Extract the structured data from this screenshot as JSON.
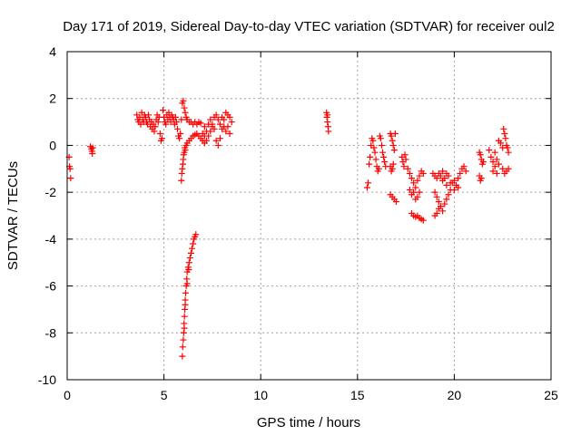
{
  "chart_data": {
    "type": "scatter",
    "title": "Day 171 of 2019, Sidereal Day-to-day VTEC variation (SDTVAR) for receiver oul2",
    "xlabel": "GPS time / hours",
    "ylabel": "SDTVAR / TECUs",
    "xlim": [
      0,
      25
    ],
    "ylim": [
      -10,
      4
    ],
    "xticks": [
      0,
      5,
      10,
      15,
      20,
      25
    ],
    "yticks": [
      -10,
      -8,
      -6,
      -4,
      -2,
      0,
      2,
      4
    ],
    "grid": true,
    "marker": "+",
    "series": [
      {
        "name": "SDTVAR",
        "color": "#ff0000",
        "points": [
          [
            0.1,
            -0.5
          ],
          [
            0.12,
            -0.9
          ],
          [
            0.15,
            -1.0
          ],
          [
            0.18,
            -1.4
          ],
          [
            1.2,
            -0.05
          ],
          [
            1.25,
            -0.15
          ],
          [
            1.28,
            -0.25
          ],
          [
            1.3,
            -0.35
          ],
          [
            1.32,
            -0.1
          ],
          [
            3.6,
            1.3
          ],
          [
            3.65,
            1.1
          ],
          [
            3.7,
            1.0
          ],
          [
            3.75,
            1.2
          ],
          [
            3.8,
            0.9
          ],
          [
            3.85,
            1.4
          ],
          [
            3.9,
            1.1
          ],
          [
            3.95,
            1.0
          ],
          [
            4.0,
            1.3
          ],
          [
            4.05,
            1.2
          ],
          [
            4.1,
            1.0
          ],
          [
            4.15,
            0.9
          ],
          [
            4.2,
            1.3
          ],
          [
            4.25,
            1.1
          ],
          [
            4.3,
            0.8
          ],
          [
            4.35,
            1.0
          ],
          [
            4.4,
            0.7
          ],
          [
            4.45,
            0.9
          ],
          [
            4.5,
            0.6
          ],
          [
            4.55,
            0.8
          ],
          [
            4.6,
            1.1
          ],
          [
            4.65,
            1.3
          ],
          [
            4.7,
            1.0
          ],
          [
            4.75,
            1.2
          ],
          [
            4.8,
            0.5
          ],
          [
            4.85,
            0.2
          ],
          [
            4.9,
            0.3
          ],
          [
            4.95,
            1.5
          ],
          [
            5.0,
            1.2
          ],
          [
            5.05,
            1.0
          ],
          [
            5.1,
            0.9
          ],
          [
            5.15,
            1.3
          ],
          [
            5.2,
            1.1
          ],
          [
            5.25,
            1.4
          ],
          [
            5.3,
            1.2
          ],
          [
            5.35,
            1.0
          ],
          [
            5.4,
            1.3
          ],
          [
            5.45,
            1.2
          ],
          [
            5.5,
            1.1
          ],
          [
            5.55,
            0.9
          ],
          [
            5.6,
            1.2
          ],
          [
            5.65,
            1.0
          ],
          [
            5.7,
            0.7
          ],
          [
            5.75,
            0.4
          ],
          [
            5.8,
            0.3
          ],
          [
            5.85,
            0.5
          ],
          [
            5.9,
            1.1
          ],
          [
            5.95,
            1.8
          ],
          [
            6.0,
            1.9
          ],
          [
            6.05,
            1.6
          ],
          [
            6.1,
            1.4
          ],
          [
            6.15,
            1.2
          ],
          [
            6.2,
            1.1
          ],
          [
            6.3,
            1.0
          ],
          [
            6.4,
            1.0
          ],
          [
            6.5,
            0.9
          ],
          [
            6.6,
            1.0
          ],
          [
            6.7,
            0.9
          ],
          [
            6.8,
            1.0
          ],
          [
            6.9,
            0.95
          ],
          [
            5.9,
            -1.5
          ],
          [
            5.92,
            -1.2
          ],
          [
            5.95,
            -1.0
          ],
          [
            5.98,
            -0.8
          ],
          [
            6.0,
            -0.6
          ],
          [
            6.02,
            -0.4
          ],
          [
            6.05,
            -0.3
          ],
          [
            6.08,
            -0.1
          ],
          [
            6.1,
            -0.2
          ],
          [
            6.15,
            0.0
          ],
          [
            6.2,
            0.1
          ],
          [
            6.3,
            0.2
          ],
          [
            6.4,
            0.3
          ],
          [
            6.5,
            0.4
          ],
          [
            6.6,
            0.45
          ],
          [
            6.7,
            0.5
          ],
          [
            6.8,
            0.4
          ],
          [
            6.9,
            0.3
          ],
          [
            7.0,
            0.5
          ],
          [
            7.1,
            0.8
          ],
          [
            7.0,
            0.2
          ],
          [
            7.1,
            0.4
          ],
          [
            7.2,
            0.6
          ],
          [
            7.3,
            0.9
          ],
          [
            7.4,
            1.1
          ],
          [
            7.5,
            0.8
          ],
          [
            7.6,
            0.7
          ],
          [
            7.7,
            0.2
          ],
          [
            7.8,
            0.0
          ],
          [
            7.9,
            0.3
          ],
          [
            8.0,
            1.2
          ],
          [
            8.1,
            1.1
          ],
          [
            8.2,
            1.4
          ],
          [
            8.3,
            1.3
          ],
          [
            8.4,
            1.2
          ],
          [
            8.5,
            1.0
          ],
          [
            8.2,
            0.6
          ],
          [
            8.3,
            0.8
          ],
          [
            8.4,
            0.5
          ],
          [
            7.6,
            1.2
          ],
          [
            7.7,
            1.3
          ],
          [
            7.8,
            1.1
          ],
          [
            7.9,
            0.9
          ],
          [
            8.0,
            0.7
          ],
          [
            8.1,
            0.8
          ],
          [
            7.4,
            0.6
          ],
          [
            7.5,
            0.9
          ],
          [
            7.3,
            0.4
          ],
          [
            7.2,
            0.2
          ],
          [
            7.1,
            0.1
          ],
          [
            5.95,
            -9.0
          ],
          [
            5.97,
            -8.6
          ],
          [
            6.0,
            -8.3
          ],
          [
            6.02,
            -8.0
          ],
          [
            6.04,
            -7.6
          ],
          [
            6.06,
            -7.3
          ],
          [
            6.08,
            -7.0
          ],
          [
            6.1,
            -6.6
          ],
          [
            6.12,
            -6.3
          ],
          [
            6.15,
            -6.0
          ],
          [
            6.18,
            -5.7
          ],
          [
            6.2,
            -5.4
          ],
          [
            6.25,
            -5.2
          ],
          [
            6.3,
            -5.0
          ],
          [
            6.35,
            -4.8
          ],
          [
            6.4,
            -4.6
          ],
          [
            6.45,
            -4.4
          ],
          [
            6.5,
            -4.2
          ],
          [
            6.55,
            -4.0
          ],
          [
            6.6,
            -3.9
          ],
          [
            6.65,
            -3.8
          ],
          [
            6.05,
            -7.8
          ],
          [
            6.1,
            -6.8
          ],
          [
            6.2,
            -5.9
          ],
          [
            6.28,
            -5.3
          ],
          [
            13.4,
            1.4
          ],
          [
            13.42,
            1.2
          ],
          [
            13.45,
            1.0
          ],
          [
            13.48,
            0.8
          ],
          [
            13.5,
            0.6
          ],
          [
            13.45,
            1.3
          ],
          [
            15.5,
            -1.8
          ],
          [
            15.55,
            -1.6
          ],
          [
            15.6,
            -0.8
          ],
          [
            15.65,
            -0.5
          ],
          [
            15.7,
            0.0
          ],
          [
            15.75,
            0.3
          ],
          [
            15.8,
            0.2
          ],
          [
            15.85,
            -0.1
          ],
          [
            15.9,
            -0.3
          ],
          [
            15.95,
            -0.6
          ],
          [
            16.0,
            -0.9
          ],
          [
            16.05,
            -1.1
          ],
          [
            16.1,
            -1.0
          ],
          [
            16.15,
            0.4
          ],
          [
            16.2,
            0.3
          ],
          [
            16.25,
            0.0
          ],
          [
            16.3,
            -0.3
          ],
          [
            16.35,
            -0.5
          ],
          [
            16.4,
            -0.7
          ],
          [
            16.45,
            -0.9
          ],
          [
            16.7,
            0.5
          ],
          [
            16.75,
            0.4
          ],
          [
            16.8,
            0.2
          ],
          [
            16.85,
            0.0
          ],
          [
            16.9,
            -0.2
          ],
          [
            16.95,
            0.5
          ],
          [
            16.7,
            -0.9
          ],
          [
            16.75,
            -1.1
          ],
          [
            16.8,
            -1.0
          ],
          [
            16.85,
            -0.8
          ],
          [
            16.7,
            -2.1
          ],
          [
            16.8,
            -2.2
          ],
          [
            16.9,
            -2.3
          ],
          [
            17.0,
            -2.4
          ],
          [
            17.3,
            -0.5
          ],
          [
            17.35,
            -0.7
          ],
          [
            17.4,
            -0.9
          ],
          [
            17.45,
            -0.4
          ],
          [
            17.5,
            -0.6
          ],
          [
            17.6,
            -1.0
          ],
          [
            17.7,
            -1.2
          ],
          [
            17.8,
            -1.4
          ],
          [
            17.9,
            -1.6
          ],
          [
            18.0,
            -1.8
          ],
          [
            18.1,
            -1.5
          ],
          [
            18.2,
            -1.3
          ],
          [
            18.3,
            -1.1
          ],
          [
            18.4,
            -1.2
          ],
          [
            17.7,
            -1.9
          ],
          [
            17.8,
            -2.1
          ],
          [
            17.9,
            -2.0
          ],
          [
            18.0,
            -2.3
          ],
          [
            18.1,
            -2.2
          ],
          [
            18.2,
            -2.0
          ],
          [
            17.8,
            -2.9
          ],
          [
            17.9,
            -3.0
          ],
          [
            18.0,
            -3.05
          ],
          [
            18.1,
            -3.0
          ],
          [
            18.2,
            -3.1
          ],
          [
            18.3,
            -3.15
          ],
          [
            18.4,
            -3.2
          ],
          [
            18.9,
            -1.2
          ],
          [
            19.0,
            -1.3
          ],
          [
            19.1,
            -1.4
          ],
          [
            19.2,
            -1.2
          ],
          [
            19.3,
            -1.3
          ],
          [
            19.4,
            -1.1
          ],
          [
            19.5,
            -1.4
          ],
          [
            19.6,
            -1.2
          ],
          [
            19.7,
            -1.3
          ],
          [
            19.0,
            -2.0
          ],
          [
            19.1,
            -2.2
          ],
          [
            19.2,
            -2.4
          ],
          [
            19.3,
            -2.6
          ],
          [
            19.4,
            -2.8
          ],
          [
            19.5,
            -2.5
          ],
          [
            19.6,
            -2.3
          ],
          [
            19.7,
            -2.1
          ],
          [
            19.8,
            -1.9
          ],
          [
            19.9,
            -1.6
          ],
          [
            20.0,
            -1.5
          ],
          [
            20.1,
            -1.7
          ],
          [
            20.2,
            -1.4
          ],
          [
            20.3,
            -1.2
          ],
          [
            20.4,
            -1.0
          ],
          [
            20.5,
            -0.9
          ],
          [
            20.6,
            -1.1
          ],
          [
            19.0,
            -3.0
          ],
          [
            19.1,
            -2.9
          ],
          [
            19.2,
            -2.7
          ],
          [
            20.2,
            -1.8
          ],
          [
            20.0,
            -1.9
          ],
          [
            19.8,
            -1.6
          ],
          [
            19.6,
            -1.7
          ],
          [
            19.4,
            -1.5
          ],
          [
            21.3,
            -1.3
          ],
          [
            21.35,
            -1.5
          ],
          [
            21.4,
            -1.4
          ],
          [
            21.3,
            -0.3
          ],
          [
            21.35,
            -0.4
          ],
          [
            21.4,
            -0.6
          ],
          [
            21.45,
            -0.8
          ],
          [
            21.5,
            -0.7
          ],
          [
            21.8,
            -0.2
          ],
          [
            21.9,
            -0.5
          ],
          [
            22.0,
            -0.7
          ],
          [
            22.1,
            -0.3
          ],
          [
            22.2,
            -0.6
          ],
          [
            22.3,
            -0.8
          ],
          [
            22.1,
            -0.9
          ],
          [
            22.0,
            -1.1
          ],
          [
            22.2,
            -1.2
          ],
          [
            22.3,
            0.2
          ],
          [
            22.4,
            0.1
          ],
          [
            22.5,
            -0.1
          ],
          [
            22.55,
            0.7
          ],
          [
            22.6,
            0.5
          ],
          [
            22.65,
            0.3
          ],
          [
            22.7,
            0.0
          ],
          [
            22.75,
            -0.1
          ],
          [
            22.8,
            -0.3
          ],
          [
            22.5,
            -1.0
          ],
          [
            22.6,
            -1.2
          ],
          [
            22.7,
            -1.1
          ],
          [
            22.8,
            -1.0
          ]
        ]
      }
    ]
  }
}
